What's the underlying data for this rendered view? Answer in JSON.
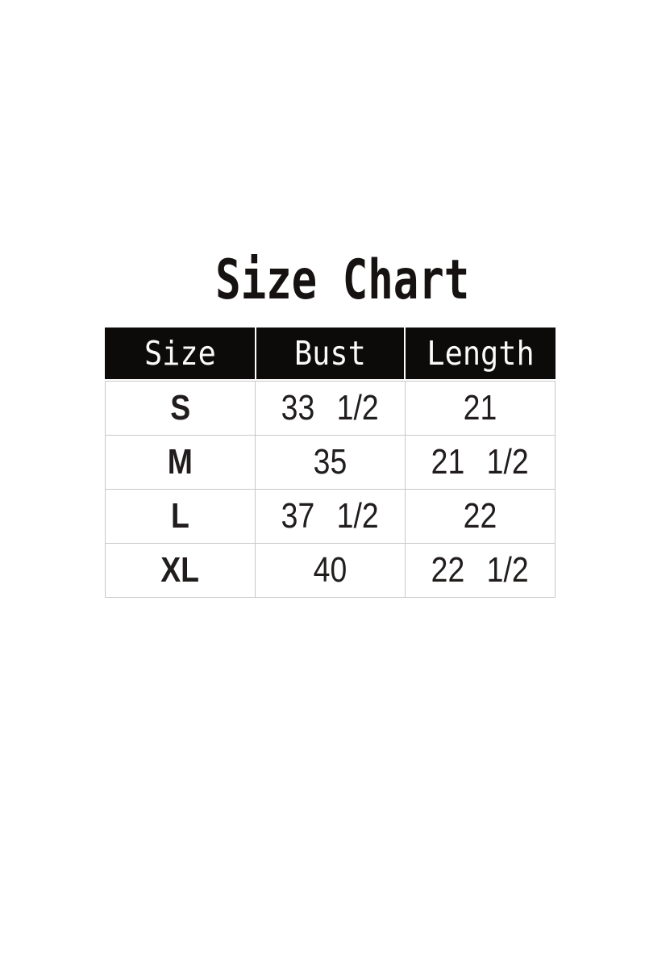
{
  "colors": {
    "background": "#ffffff",
    "header_bg": "#0d0a0a",
    "header_text": "#fafafa",
    "grid_border": "#c8c8c8",
    "title_text": "#161211",
    "body_text": "#211d1d"
  },
  "chart_data": {
    "type": "table",
    "title": "Size Chart",
    "columns": [
      "Size",
      "Bust",
      "Length"
    ],
    "rows": [
      [
        "S",
        "33 1/2",
        "21"
      ],
      [
        "M",
        "35",
        "21 1/2"
      ],
      [
        "L",
        "37 1/2",
        "22"
      ],
      [
        "XL",
        "40",
        "22 1/2"
      ]
    ],
    "layout_hints": {
      "header_style": "black background, white text",
      "grid": "thin light-gray lines between body cells",
      "alignment": "all cells centered"
    }
  }
}
